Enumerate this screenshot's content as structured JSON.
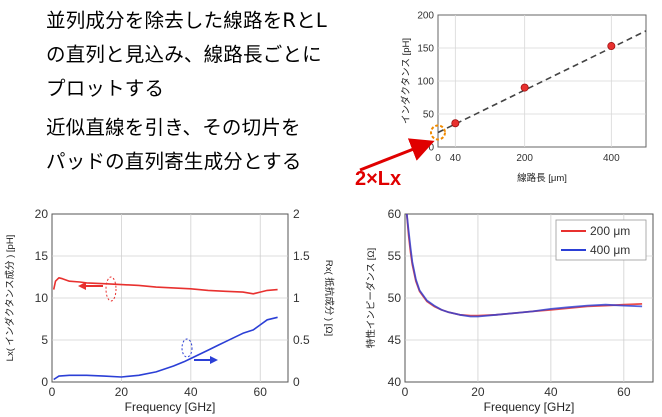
{
  "description": {
    "line1": "並列成分を除去した線路をRとL",
    "line2": "の直列と見込み、線路長ごとに",
    "line3": "プロットする",
    "line4": "近似直線を引き、その切片を",
    "line5": "パッドの直列寄生成分とする"
  },
  "callout": "2×Lx",
  "colors": {
    "red": "#e8312f",
    "blue": "#2b3fd6",
    "purple": "#7a3aa8",
    "orange": "#f08a00",
    "callout": "#e00000"
  },
  "chart_data": [
    {
      "type": "scatter",
      "xlabel": "線路長 [μm]",
      "ylabel": "インダクタンス [pH]",
      "xticks": [
        "0",
        "40",
        "200",
        "400"
      ],
      "yticks": [
        "0",
        "50",
        "100",
        "150",
        "200"
      ],
      "xlim": [
        0,
        480
      ],
      "ylim": [
        0,
        200
      ],
      "points": [
        {
          "x": 40,
          "y": 36
        },
        {
          "x": 200,
          "y": 90
        },
        {
          "x": 400,
          "y": 153
        }
      ],
      "fit_line": {
        "x": [
          0,
          480
        ],
        "y": [
          22,
          176
        ]
      },
      "intercept_marker": {
        "x": 0,
        "y": 22
      }
    },
    {
      "type": "line",
      "xlabel": "Frequency [GHz]",
      "ylabel_left": "Lx( インダクタンス成分 ) [pH]",
      "ylabel_right": "Rx( 抵抗成分 ) [Ω]",
      "xticks": [
        "0",
        "20",
        "40",
        "60"
      ],
      "yticks_left": [
        "0",
        "5",
        "10",
        "15",
        "20"
      ],
      "yticks_right": [
        "0",
        "0.5",
        "1",
        "1.5",
        "2"
      ],
      "xlim": [
        0,
        68
      ],
      "ylim_left": [
        0,
        20
      ],
      "ylim_right": [
        0,
        2
      ],
      "series": [
        {
          "axis": "left",
          "x": [
            0.5,
            1,
            2,
            3,
            5,
            8,
            10,
            15,
            20,
            25,
            30,
            35,
            40,
            45,
            50,
            55,
            58,
            60,
            62,
            65
          ],
          "y": [
            11.0,
            12.0,
            12.4,
            12.3,
            12.0,
            11.9,
            11.8,
            11.7,
            11.6,
            11.5,
            11.3,
            11.2,
            11.1,
            10.9,
            10.8,
            10.7,
            10.5,
            10.7,
            10.9,
            11.0
          ]
        },
        {
          "axis": "right",
          "x": [
            0.5,
            2,
            5,
            10,
            15,
            20,
            25,
            30,
            35,
            38,
            40,
            42,
            45,
            48,
            50,
            52,
            55,
            58,
            60,
            62,
            65
          ],
          "y": [
            0.03,
            0.07,
            0.08,
            0.08,
            0.07,
            0.06,
            0.08,
            0.12,
            0.19,
            0.24,
            0.28,
            0.32,
            0.38,
            0.44,
            0.48,
            0.52,
            0.58,
            0.62,
            0.68,
            0.74,
            0.77
          ]
        }
      ]
    },
    {
      "type": "line",
      "xlabel": "Frequency [GHz]",
      "ylabel": "特性インピーダンス [Ω]",
      "xticks": [
        "0",
        "20",
        "40",
        "60"
      ],
      "yticks": [
        "40",
        "45",
        "50",
        "55",
        "60"
      ],
      "xlim": [
        0,
        68
      ],
      "ylim": [
        40,
        60
      ],
      "series": [
        {
          "name": "200 μm",
          "x": [
            0.5,
            1,
            1.5,
            2,
            3,
            4,
            6,
            8,
            10,
            12,
            15,
            18,
            20,
            25,
            30,
            35,
            40,
            45,
            50,
            55,
            60,
            65
          ],
          "y": [
            60,
            57.5,
            55.5,
            54.0,
            52.0,
            50.8,
            49.6,
            49.0,
            48.6,
            48.3,
            48.0,
            47.9,
            47.9,
            48.0,
            48.2,
            48.4,
            48.6,
            48.8,
            49.0,
            49.1,
            49.2,
            49.3
          ]
        },
        {
          "name": "400 μm",
          "x": [
            0.5,
            1,
            1.5,
            2,
            3,
            4,
            6,
            8,
            10,
            12,
            15,
            18,
            20,
            25,
            30,
            35,
            40,
            45,
            50,
            55,
            60,
            65
          ],
          "y": [
            60,
            58.0,
            56.0,
            54.3,
            52.2,
            50.9,
            49.7,
            49.1,
            48.6,
            48.3,
            48.0,
            47.8,
            47.8,
            48.0,
            48.2,
            48.4,
            48.7,
            48.9,
            49.1,
            49.2,
            49.1,
            49.0
          ]
        }
      ]
    }
  ]
}
